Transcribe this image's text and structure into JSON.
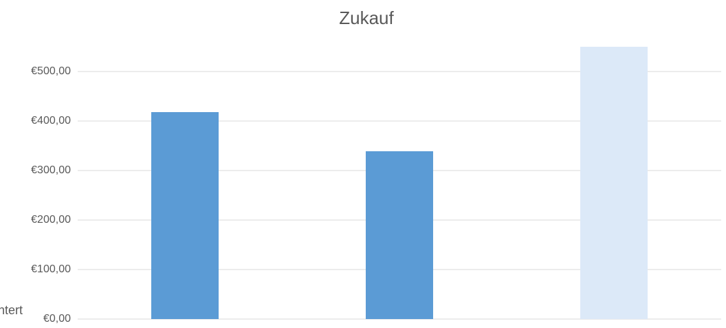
{
  "chart_data": {
    "type": "bar",
    "title": "Zukauf",
    "categories": [
      null,
      null,
      null
    ],
    "values": [
      418,
      339,
      550
    ],
    "colors": [
      "#5b9bd5",
      "#5b9bd5",
      "#dce9f8"
    ],
    "ylim": [
      0,
      550
    ],
    "yticks": [
      {
        "value": 0,
        "label": "€0,00"
      },
      {
        "value": 100,
        "label": "€100,00"
      },
      {
        "value": 200,
        "label": "€200,00"
      },
      {
        "value": 300,
        "label": "€300,00"
      },
      {
        "value": 400,
        "label": "€400,00"
      },
      {
        "value": 500,
        "label": "€500,00"
      }
    ],
    "grid": true,
    "annotation": "ntert"
  }
}
